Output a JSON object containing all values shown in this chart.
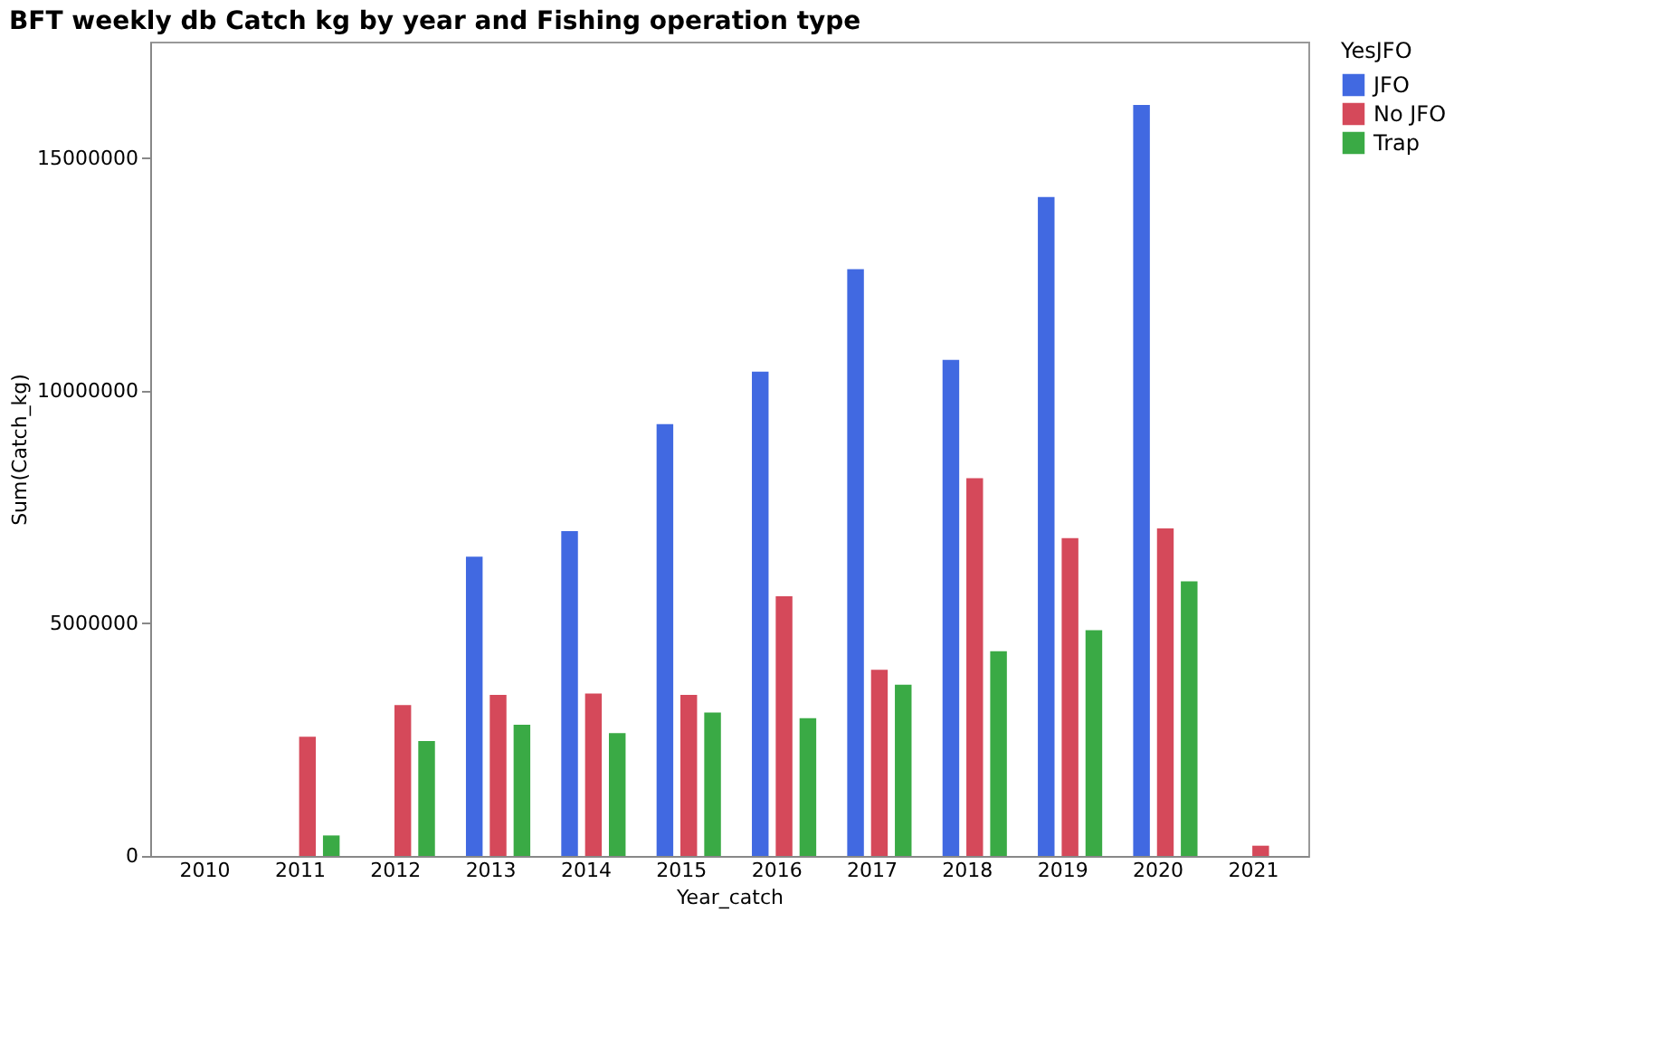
{
  "chart_data": {
    "type": "bar",
    "title": "BFT weekly db Catch kg by year and Fishing operation type",
    "xlabel": "Year_catch",
    "ylabel": "Sum(Catch_kg)",
    "legend_title": "YesJFO",
    "categories": [
      "2010",
      "2011",
      "2012",
      "2013",
      "2014",
      "2015",
      "2016",
      "2017",
      "2018",
      "2019",
      "2020",
      "2021"
    ],
    "series": [
      {
        "name": "JFO",
        "color": "#4169e1",
        "values": [
          null,
          null,
          null,
          6430000,
          6980000,
          9280000,
          10410000,
          12610000,
          10660000,
          14160000,
          16140000,
          null
        ]
      },
      {
        "name": "No JFO",
        "color": "#d5495a",
        "values": [
          null,
          2560000,
          3240000,
          3460000,
          3490000,
          3460000,
          5580000,
          4000000,
          8120000,
          6830000,
          7040000,
          220000
        ]
      },
      {
        "name": "Trap",
        "color": "#3aaa45",
        "values": [
          null,
          440000,
          2470000,
          2820000,
          2640000,
          3080000,
          2960000,
          3680000,
          4400000,
          4850000,
          5900000,
          null
        ]
      }
    ],
    "ylim": [
      0,
      17500000
    ],
    "yticks": [
      0,
      5000000,
      10000000,
      15000000
    ],
    "grid": false,
    "legend": "top right"
  }
}
